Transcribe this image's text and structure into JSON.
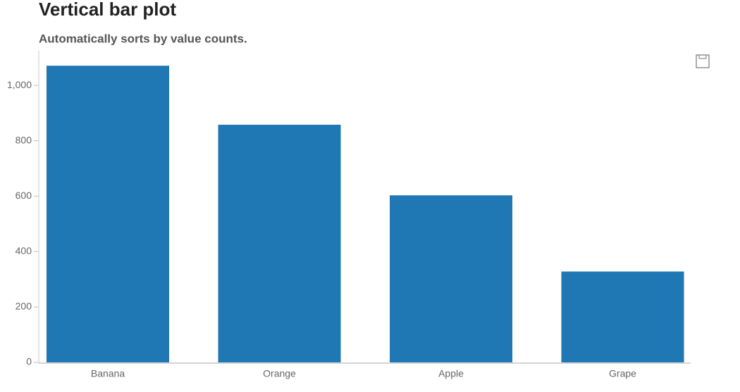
{
  "chart_data": {
    "type": "bar",
    "title": "Vertical bar plot",
    "subtitle": "Automatically sorts by value counts.",
    "categories": [
      "Banana",
      "Orange",
      "Apple",
      "Grape"
    ],
    "values": [
      1071,
      858,
      603,
      328
    ],
    "color": "#1f77b4",
    "ylim": [
      0,
      1125
    ],
    "yticks": [
      0,
      200,
      400,
      600,
      800,
      {
        "value": 1000,
        "label": "1,000"
      }
    ]
  }
}
